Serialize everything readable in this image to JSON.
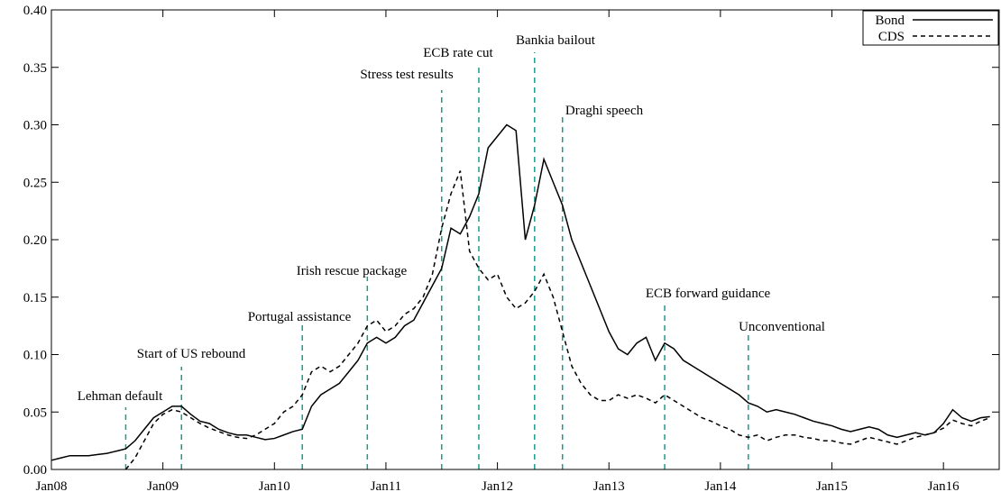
{
  "chart_data": {
    "type": "line",
    "x": [
      "2008-01",
      "2008-02",
      "2008-03",
      "2008-04",
      "2008-05",
      "2008-06",
      "2008-07",
      "2008-08",
      "2008-09",
      "2008-10",
      "2008-11",
      "2008-12",
      "2009-01",
      "2009-02",
      "2009-03",
      "2009-04",
      "2009-05",
      "2009-06",
      "2009-07",
      "2009-08",
      "2009-09",
      "2009-10",
      "2009-11",
      "2009-12",
      "2010-01",
      "2010-02",
      "2010-03",
      "2010-04",
      "2010-05",
      "2010-06",
      "2010-07",
      "2010-08",
      "2010-09",
      "2010-10",
      "2010-11",
      "2010-12",
      "2011-01",
      "2011-02",
      "2011-03",
      "2011-04",
      "2011-05",
      "2011-06",
      "2011-07",
      "2011-08",
      "2011-09",
      "2011-10",
      "2011-11",
      "2011-12",
      "2012-01",
      "2012-02",
      "2012-03",
      "2012-04",
      "2012-05",
      "2012-06",
      "2012-07",
      "2012-08",
      "2012-09",
      "2012-10",
      "2012-11",
      "2012-12",
      "2013-01",
      "2013-02",
      "2013-03",
      "2013-04",
      "2013-05",
      "2013-06",
      "2013-07",
      "2013-08",
      "2013-09",
      "2013-10",
      "2013-11",
      "2013-12",
      "2014-01",
      "2014-02",
      "2014-03",
      "2014-04",
      "2014-05",
      "2014-06",
      "2014-07",
      "2014-08",
      "2014-09",
      "2014-10",
      "2014-11",
      "2014-12",
      "2015-01",
      "2015-02",
      "2015-03",
      "2015-04",
      "2015-05",
      "2015-06",
      "2015-07",
      "2015-08",
      "2015-09",
      "2015-10",
      "2015-11",
      "2015-12",
      "2016-01",
      "2016-02",
      "2016-03",
      "2016-04",
      "2016-05",
      "2016-06"
    ],
    "series": [
      {
        "name": "Bond",
        "color": "#000000",
        "dash": "solid",
        "values": [
          0.008,
          0.01,
          0.012,
          0.012,
          0.012,
          0.013,
          0.014,
          0.016,
          0.018,
          0.025,
          0.035,
          0.045,
          0.05,
          0.055,
          0.055,
          0.048,
          0.042,
          0.04,
          0.035,
          0.032,
          0.03,
          0.03,
          0.028,
          0.026,
          0.027,
          0.03,
          0.033,
          0.035,
          0.055,
          0.065,
          0.07,
          0.075,
          0.085,
          0.095,
          0.11,
          0.115,
          0.11,
          0.115,
          0.125,
          0.13,
          0.145,
          0.16,
          0.175,
          0.21,
          0.205,
          0.22,
          0.24,
          0.28,
          0.29,
          0.3,
          0.295,
          0.2,
          0.23,
          0.27,
          0.25,
          0.23,
          0.2,
          0.18,
          0.16,
          0.14,
          0.12,
          0.105,
          0.1,
          0.11,
          0.115,
          0.095,
          0.11,
          0.105,
          0.095,
          0.09,
          0.085,
          0.08,
          0.075,
          0.07,
          0.065,
          0.058,
          0.055,
          0.05,
          0.052,
          0.05,
          0.048,
          0.045,
          0.042,
          0.04,
          0.038,
          0.035,
          0.033,
          0.035,
          0.037,
          0.035,
          0.03,
          0.028,
          0.03,
          0.032,
          0.03,
          0.032,
          0.04,
          0.052,
          0.045,
          0.042,
          0.045,
          0.046
        ]
      },
      {
        "name": "CDS",
        "color": "#000000",
        "dash": "dashed",
        "values": [
          null,
          null,
          null,
          null,
          null,
          null,
          null,
          null,
          0.0,
          0.01,
          0.025,
          0.04,
          0.048,
          0.052,
          0.05,
          0.045,
          0.04,
          0.036,
          0.033,
          0.03,
          0.028,
          0.027,
          0.03,
          0.035,
          0.04,
          0.05,
          0.055,
          0.065,
          0.085,
          0.09,
          0.085,
          0.09,
          0.1,
          0.11,
          0.125,
          0.13,
          0.12,
          0.125,
          0.135,
          0.14,
          0.15,
          0.17,
          0.21,
          0.24,
          0.26,
          0.19,
          0.175,
          0.165,
          0.17,
          0.15,
          0.14,
          0.145,
          0.155,
          0.17,
          0.15,
          0.12,
          0.09,
          0.075,
          0.065,
          0.06,
          0.06,
          0.065,
          0.062,
          0.065,
          0.062,
          0.058,
          0.065,
          0.06,
          0.055,
          0.05,
          0.045,
          0.042,
          0.038,
          0.035,
          0.03,
          0.028,
          0.03,
          0.025,
          0.028,
          0.03,
          0.03,
          0.028,
          0.027,
          0.025,
          0.025,
          0.023,
          0.022,
          0.025,
          0.028,
          0.026,
          0.024,
          0.022,
          0.025,
          0.028,
          0.03,
          0.032,
          0.036,
          0.043,
          0.04,
          0.038,
          0.042,
          0.045
        ]
      }
    ],
    "events": [
      {
        "date": "2008-09",
        "label": "Lehman default"
      },
      {
        "date": "2009-03",
        "label": "Start of US rebound"
      },
      {
        "date": "2010-04",
        "label": "Portugal assistance"
      },
      {
        "date": "2010-11",
        "label": "Irish rescue package"
      },
      {
        "date": "2011-07",
        "label": "Stress test results"
      },
      {
        "date": "2011-11",
        "label": "ECB rate cut"
      },
      {
        "date": "2012-05",
        "label": "Bankia bailout"
      },
      {
        "date": "2012-08",
        "label": "Draghi speech"
      },
      {
        "date": "2013-07",
        "label": "ECB forward guidance"
      },
      {
        "date": "2014-04",
        "label": "Unconventional"
      }
    ],
    "event_color": "#1a9c8c",
    "xlim": [
      "2008-01",
      "2016-07"
    ],
    "xticks": [
      {
        "value": "2008-01",
        "label": "Jan08"
      },
      {
        "value": "2009-01",
        "label": "Jan09"
      },
      {
        "value": "2010-01",
        "label": "Jan10"
      },
      {
        "value": "2011-01",
        "label": "Jan11"
      },
      {
        "value": "2012-01",
        "label": "Jan12"
      },
      {
        "value": "2013-01",
        "label": "Jan13"
      },
      {
        "value": "2014-01",
        "label": "Jan14"
      },
      {
        "value": "2015-01",
        "label": "Jan15"
      },
      {
        "value": "2016-01",
        "label": "Jan16"
      }
    ],
    "ylim": [
      0,
      0.4
    ],
    "yticks": [
      {
        "value": 0,
        "label": "0.00"
      },
      {
        "value": 0.05,
        "label": "0.05"
      },
      {
        "value": 0.1,
        "label": "0.10"
      },
      {
        "value": 0.15,
        "label": "0.15"
      },
      {
        "value": 0.2,
        "label": "0.20"
      },
      {
        "value": 0.25,
        "label": "0.25"
      },
      {
        "value": 0.3,
        "label": "0.30"
      },
      {
        "value": 0.35,
        "label": "0.35"
      },
      {
        "value": 0.4,
        "label": "0.40"
      }
    ],
    "legend": "upper right"
  }
}
